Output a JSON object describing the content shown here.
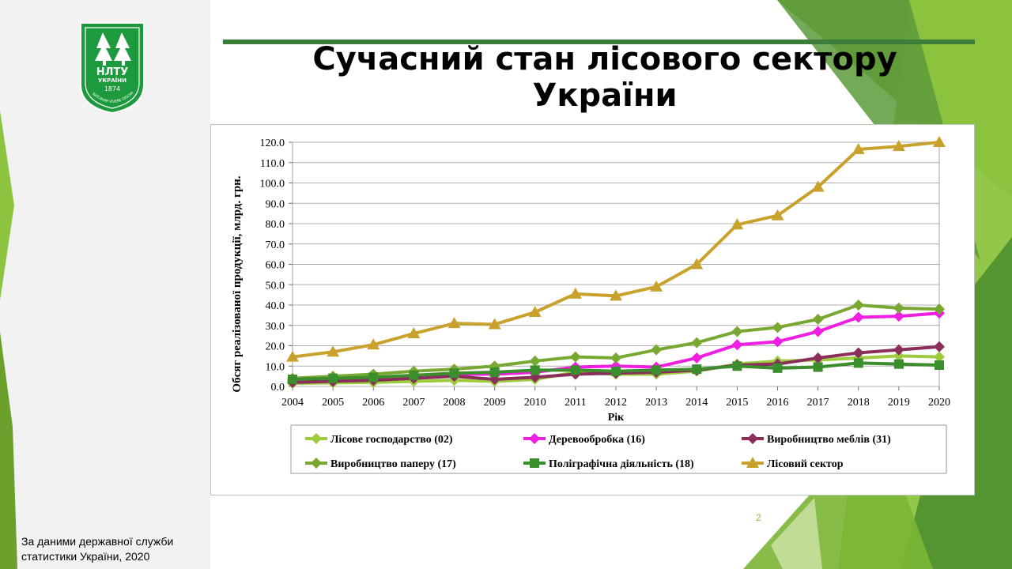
{
  "slide": {
    "title": "Сучасний стан лісового сектору України",
    "source": "За даними державної служби статистики України, 2020",
    "page_number": "2"
  },
  "logo": {
    "text_main": "НЛТУ",
    "text_sub": "УКРАЇНИ",
    "year": "1874",
    "motto": "AD NATURAM VIVERE DISCIMUS",
    "color": "#1e9a3e"
  },
  "colors": {
    "green_dark": "#3c7d3a",
    "green_mid": "#6aa02b",
    "green_light": "#8cc43f"
  },
  "chart_data": {
    "type": "line",
    "xlabel": "Рік",
    "ylabel": "Обсяг реалізованої продукції, млрд. грн.",
    "ylim": [
      0,
      120
    ],
    "yticks": [
      "0.0",
      "10.0",
      "20.0",
      "30.0",
      "40.0",
      "50.0",
      "60.0",
      "70.0",
      "80.0",
      "90.0",
      "100.0",
      "110.0",
      "120.0"
    ],
    "grid": true,
    "legend_position": "bottom",
    "x": [
      "2004",
      "2005",
      "2006",
      "2007",
      "2008",
      "2009",
      "2010",
      "2011",
      "2012",
      "2013",
      "2014",
      "2015",
      "2016",
      "2017",
      "2018",
      "2019",
      "2020"
    ],
    "series": [
      {
        "name": "Лісове господарство (02)",
        "color": "#9ccc3c",
        "marker": "diamond",
        "values": [
          1.5,
          1.8,
          2.0,
          2.5,
          3.0,
          2.5,
          3.5,
          7.0,
          6.0,
          6.0,
          7.5,
          11.0,
          12.5,
          13.0,
          14.0,
          15.0,
          14.5
        ]
      },
      {
        "name": "Деревообробка (16)",
        "color": "#f01ee0",
        "marker": "diamond",
        "values": [
          3.0,
          3.5,
          4.0,
          5.0,
          6.0,
          6.0,
          7.0,
          9.5,
          10.0,
          9.5,
          14.0,
          20.5,
          22.0,
          27.0,
          34.0,
          34.5,
          36.0
        ]
      },
      {
        "name": "Виробництво меблів (31)",
        "color": "#8b2e5c",
        "marker": "diamond",
        "values": [
          2.0,
          2.5,
          3.0,
          4.0,
          5.0,
          3.5,
          4.5,
          6.0,
          6.5,
          7.0,
          8.0,
          10.5,
          11.0,
          14.0,
          16.5,
          18.0,
          19.5
        ]
      },
      {
        "name": "Виробництво паперу (17)",
        "color": "#78a832",
        "marker": "diamond",
        "values": [
          4.0,
          5.0,
          6.0,
          7.5,
          8.5,
          10.0,
          12.5,
          14.5,
          14.0,
          18.0,
          21.5,
          27.0,
          29.0,
          33.0,
          40.0,
          38.5,
          38.0
        ]
      },
      {
        "name": "Поліграфічна діяльність (18)",
        "color": "#3a8e2c",
        "marker": "square",
        "values": [
          3.5,
          4.0,
          4.5,
          5.5,
          6.5,
          7.0,
          8.0,
          8.0,
          7.5,
          8.0,
          8.5,
          10.0,
          9.0,
          9.5,
          11.5,
          11.0,
          10.5
        ]
      },
      {
        "name": "Лісовий сектор",
        "color": "#c8a22c",
        "marker": "triangle",
        "values": [
          14.5,
          17.0,
          20.5,
          26.0,
          31.0,
          30.5,
          36.5,
          45.5,
          44.5,
          49.0,
          60.0,
          79.5,
          84.0,
          98.0,
          116.5,
          118.0,
          120.0
        ]
      }
    ]
  }
}
